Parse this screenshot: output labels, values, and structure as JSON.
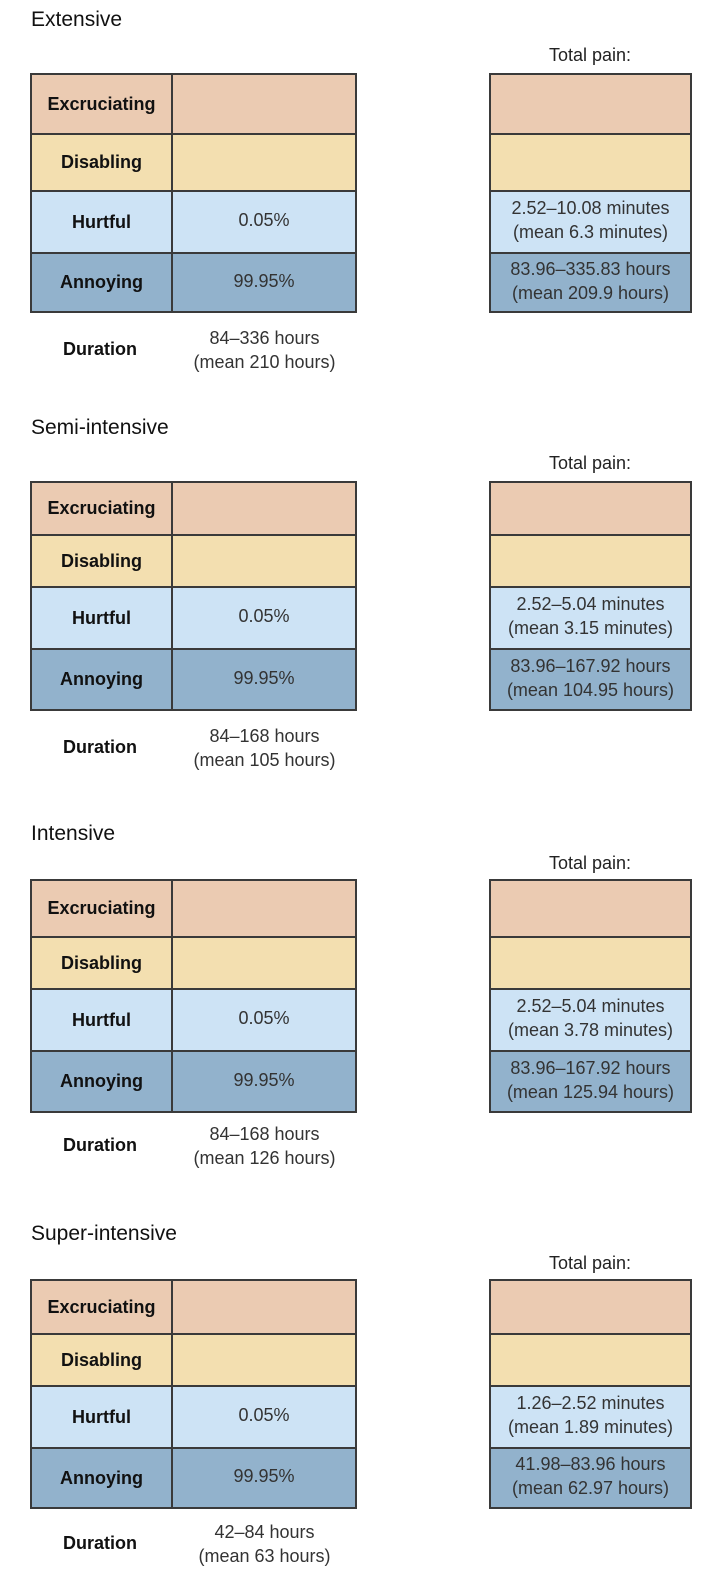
{
  "colors": {
    "excruciating": "#ebcbb2",
    "disabling": "#f3dfb0",
    "hurtful": "#cde3f5",
    "annoying": "#92b2cc"
  },
  "sections": [
    {
      "title": "Extensive",
      "total_pain_label": "Total pain:",
      "rows": [
        {
          "label": "Excruciating",
          "share": "",
          "total": [
            "",
            ""
          ]
        },
        {
          "label": "Disabling",
          "share": "",
          "total": [
            "",
            ""
          ]
        },
        {
          "label": "Hurtful",
          "share": "0.05%",
          "total": [
            "2.52–10.08 minutes",
            "(mean 6.3 minutes)"
          ]
        },
        {
          "label": "Annoying",
          "share": "99.95%",
          "total": [
            "83.96–335.83 hours",
            "(mean 209.9 hours)"
          ]
        }
      ],
      "duration_label": "Duration",
      "duration": [
        "84–336 hours",
        "(mean 210 hours)"
      ]
    },
    {
      "title": "Semi-intensive",
      "total_pain_label": "Total pain:",
      "rows": [
        {
          "label": "Excruciating",
          "share": "",
          "total": [
            "",
            ""
          ]
        },
        {
          "label": "Disabling",
          "share": "",
          "total": [
            "",
            ""
          ]
        },
        {
          "label": "Hurtful",
          "share": "0.05%",
          "total": [
            "2.52–5.04 minutes",
            "(mean 3.15 minutes)"
          ]
        },
        {
          "label": "Annoying",
          "share": "99.95%",
          "total": [
            "83.96–167.92 hours",
            "(mean 104.95 hours)"
          ]
        }
      ],
      "duration_label": "Duration",
      "duration": [
        "84–168 hours",
        "(mean 105 hours)"
      ]
    },
    {
      "title": "Intensive",
      "total_pain_label": "Total pain:",
      "rows": [
        {
          "label": "Excruciating",
          "share": "",
          "total": [
            "",
            ""
          ]
        },
        {
          "label": "Disabling",
          "share": "",
          "total": [
            "",
            ""
          ]
        },
        {
          "label": "Hurtful",
          "share": "0.05%",
          "total": [
            "2.52–5.04 minutes",
            "(mean 3.78 minutes)"
          ]
        },
        {
          "label": "Annoying",
          "share": "99.95%",
          "total": [
            "83.96–167.92 hours",
            "(mean 125.94 hours)"
          ]
        }
      ],
      "duration_label": "Duration",
      "duration": [
        "84–168 hours",
        "(mean 126 hours)"
      ]
    },
    {
      "title": "Super-intensive",
      "total_pain_label": "Total pain:",
      "rows": [
        {
          "label": "Excruciating",
          "share": "",
          "total": [
            "",
            ""
          ]
        },
        {
          "label": "Disabling",
          "share": "",
          "total": [
            "",
            ""
          ]
        },
        {
          "label": "Hurtful",
          "share": "0.05%",
          "total": [
            "1.26–2.52 minutes",
            "(mean 1.89 minutes)"
          ]
        },
        {
          "label": "Annoying",
          "share": "99.95%",
          "total": [
            "41.98–83.96 hours",
            "(mean 62.97 hours)"
          ]
        }
      ],
      "duration_label": "Duration",
      "duration": [
        "42–84 hours",
        "(mean 63 hours)"
      ]
    }
  ]
}
